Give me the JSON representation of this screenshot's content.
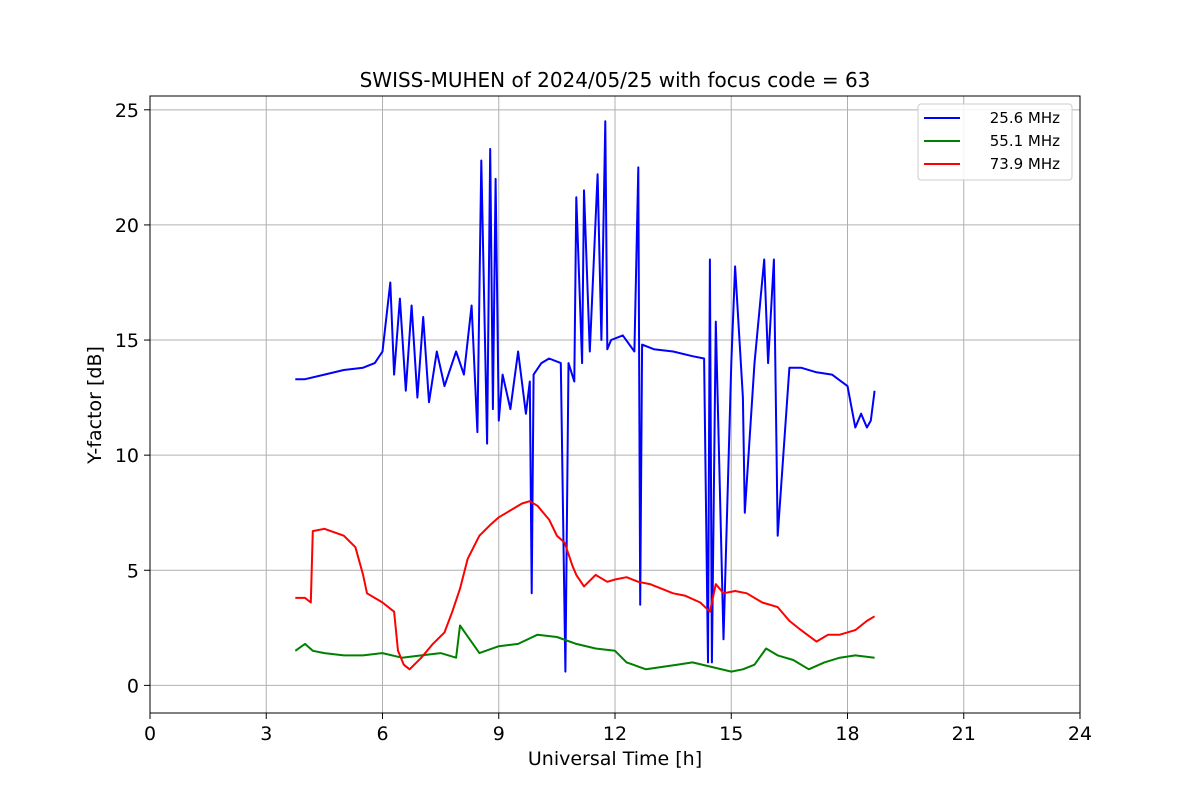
{
  "chart_data": {
    "type": "line",
    "title": "SWISS-MUHEN of 2024/05/25 with focus code = 63",
    "xlabel": "Universal Time [h]",
    "ylabel": "Y-factor [dB]",
    "xlim": [
      0,
      24
    ],
    "ylim": [
      -1.2,
      25.6
    ],
    "xticks": [
      0,
      3,
      6,
      9,
      12,
      15,
      18,
      21,
      24
    ],
    "yticks": [
      0,
      5,
      10,
      15,
      20,
      25
    ],
    "grid": true,
    "legend_position": "top-right",
    "series": [
      {
        "name": "25.6 MHz",
        "color": "#0000ff",
        "x": [
          3.75,
          4.0,
          4.5,
          5.0,
          5.5,
          5.8,
          6.0,
          6.2,
          6.3,
          6.45,
          6.6,
          6.75,
          6.9,
          7.05,
          7.2,
          7.4,
          7.6,
          7.9,
          8.1,
          8.3,
          8.45,
          8.55,
          8.7,
          8.78,
          8.85,
          8.92,
          9.0,
          9.1,
          9.3,
          9.5,
          9.7,
          9.8,
          9.85,
          9.9,
          10.1,
          10.3,
          10.6,
          10.72,
          10.8,
          10.95,
          11.0,
          11.15,
          11.2,
          11.35,
          11.55,
          11.65,
          11.75,
          11.8,
          11.9,
          12.2,
          12.5,
          12.6,
          12.65,
          12.7,
          13.0,
          13.5,
          14.0,
          14.3,
          14.4,
          14.45,
          14.5,
          14.6,
          14.8,
          15.0,
          15.1,
          15.3,
          15.35,
          15.6,
          15.85,
          15.95,
          16.1,
          16.2,
          16.5,
          16.8,
          17.2,
          17.6,
          18.0,
          18.2,
          18.35,
          18.5,
          18.6,
          18.7
        ],
        "y": [
          13.3,
          13.3,
          13.5,
          13.7,
          13.8,
          14.0,
          14.5,
          17.5,
          13.5,
          16.8,
          12.8,
          16.5,
          12.5,
          16.0,
          12.3,
          14.5,
          13.0,
          14.5,
          13.5,
          16.5,
          11.0,
          22.8,
          10.5,
          23.3,
          12.0,
          22.0,
          11.5,
          13.5,
          12.0,
          14.5,
          11.8,
          13.2,
          4.0,
          13.5,
          14.0,
          14.2,
          14.0,
          0.6,
          14.0,
          13.2,
          21.2,
          14.0,
          21.5,
          14.5,
          22.2,
          15.0,
          24.5,
          14.6,
          15.0,
          15.2,
          14.5,
          22.5,
          3.5,
          14.8,
          14.6,
          14.5,
          14.3,
          14.2,
          1.0,
          18.5,
          1.0,
          15.8,
          2.0,
          14.0,
          18.2,
          12.5,
          7.5,
          14.0,
          18.5,
          14.0,
          18.5,
          6.5,
          13.8,
          13.8,
          13.6,
          13.5,
          13.0,
          11.2,
          11.8,
          11.2,
          11.5,
          12.8
        ]
      },
      {
        "name": "55.1 MHz",
        "color": "#008000",
        "x": [
          3.75,
          4.0,
          4.2,
          4.5,
          5.0,
          5.5,
          6.0,
          6.5,
          7.0,
          7.5,
          7.9,
          8.0,
          8.5,
          9.0,
          9.5,
          10.0,
          10.5,
          11.0,
          11.5,
          12.0,
          12.3,
          12.8,
          13.2,
          13.6,
          14.0,
          14.5,
          15.0,
          15.3,
          15.6,
          15.9,
          16.2,
          16.6,
          17.0,
          17.4,
          17.8,
          18.2,
          18.7
        ],
        "y": [
          1.5,
          1.8,
          1.5,
          1.4,
          1.3,
          1.3,
          1.4,
          1.2,
          1.3,
          1.4,
          1.2,
          2.6,
          1.4,
          1.7,
          1.8,
          2.2,
          2.1,
          1.8,
          1.6,
          1.5,
          1.0,
          0.7,
          0.8,
          0.9,
          1.0,
          0.8,
          0.6,
          0.7,
          0.9,
          1.6,
          1.3,
          1.1,
          0.7,
          1.0,
          1.2,
          1.3,
          1.2
        ]
      },
      {
        "name": "73.9 MHz",
        "color": "#ff0000",
        "x": [
          3.75,
          4.0,
          4.15,
          4.2,
          4.5,
          5.0,
          5.3,
          5.5,
          5.6,
          6.0,
          6.3,
          6.4,
          6.55,
          6.7,
          7.0,
          7.3,
          7.6,
          7.8,
          8.0,
          8.2,
          8.5,
          8.8,
          9.0,
          9.3,
          9.6,
          9.8,
          10.0,
          10.3,
          10.5,
          10.7,
          10.9,
          11.0,
          11.2,
          11.5,
          11.8,
          12.0,
          12.3,
          12.6,
          12.9,
          13.2,
          13.5,
          13.8,
          14.2,
          14.45,
          14.6,
          14.8,
          15.1,
          15.4,
          15.8,
          16.2,
          16.5,
          16.8,
          17.2,
          17.5,
          17.8,
          18.2,
          18.5,
          18.7
        ],
        "y": [
          3.8,
          3.8,
          3.6,
          6.7,
          6.8,
          6.5,
          6.0,
          4.8,
          4.0,
          3.6,
          3.2,
          1.5,
          0.9,
          0.7,
          1.2,
          1.8,
          2.3,
          3.2,
          4.2,
          5.5,
          6.5,
          7.0,
          7.3,
          7.6,
          7.9,
          8.0,
          7.8,
          7.2,
          6.5,
          6.2,
          5.2,
          4.8,
          4.3,
          4.8,
          4.5,
          4.6,
          4.7,
          4.5,
          4.4,
          4.2,
          4.0,
          3.9,
          3.6,
          3.2,
          4.4,
          4.0,
          4.1,
          4.0,
          3.6,
          3.4,
          2.8,
          2.4,
          1.9,
          2.2,
          2.2,
          2.4,
          2.8,
          3.0
        ]
      }
    ]
  }
}
